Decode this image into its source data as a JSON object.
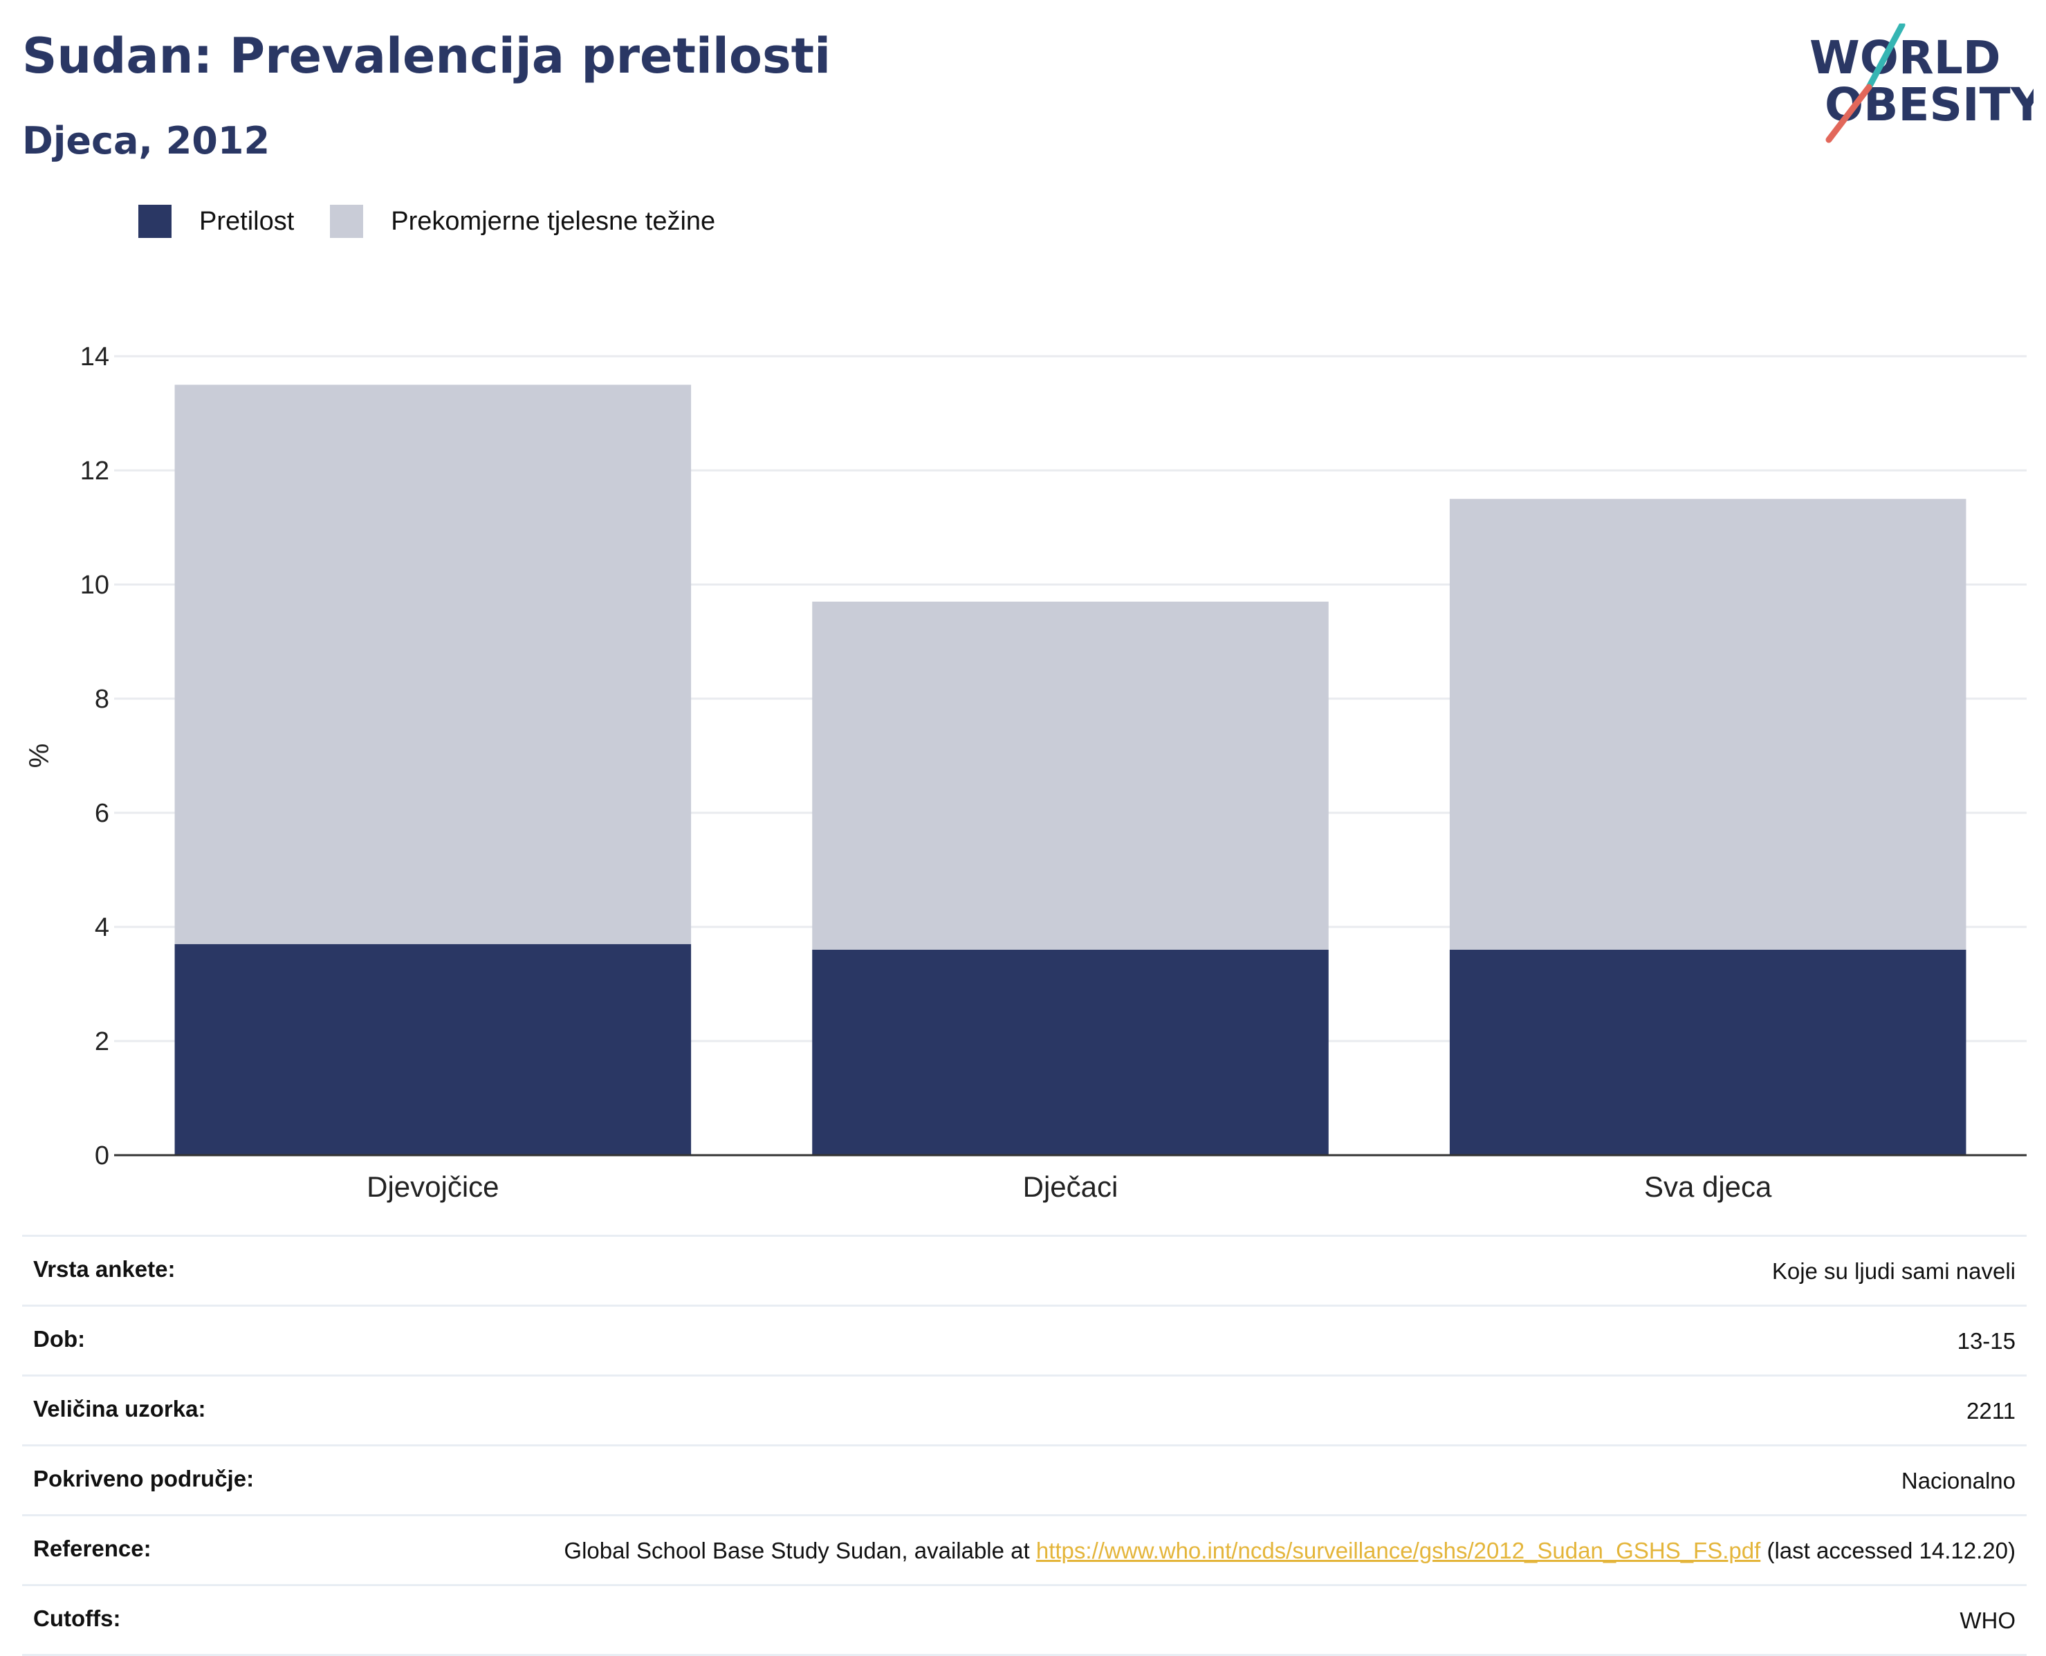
{
  "header": {
    "title": "Sudan: Prevalencija pretilosti",
    "subtitle": "Djeca, 2012",
    "logo_text_top": "WORLD",
    "logo_text_bottom": "OBESITY"
  },
  "colors": {
    "obesity": "#2a3764",
    "overweight": "#c9ccd7",
    "title": "#2a3764",
    "logo_teal": "#35b5b3",
    "logo_red": "#e2675a",
    "link": "#e4b53a"
  },
  "legend": {
    "items": [
      {
        "label": "Pretilost",
        "color": "#2a3764"
      },
      {
        "label": "Prekomjerne tjelesne težine",
        "color": "#c9ccd7"
      }
    ],
    "placement": "top-left"
  },
  "chart_data": {
    "type": "bar",
    "stacked": true,
    "categories": [
      "Djevojčice",
      "Dječaci",
      "Sva djeca"
    ],
    "series": [
      {
        "name": "Pretilost",
        "values": [
          3.7,
          3.6,
          3.6
        ]
      },
      {
        "name": "Prekomjerne tjelesne težine",
        "values": [
          9.8,
          6.1,
          7.9
        ]
      }
    ],
    "ylabel": "%",
    "xlabel": "",
    "ylim": [
      0,
      14
    ],
    "yticks": [
      0,
      2,
      4,
      6,
      8,
      10,
      12,
      14
    ],
    "grid": true
  },
  "info": {
    "rows": [
      {
        "key": "Vrsta ankete:",
        "value": "Koje su ljudi sami naveli"
      },
      {
        "key": "Dob:",
        "value": "13-15"
      },
      {
        "key": "Veličina uzorka:",
        "value": "2211"
      },
      {
        "key": "Pokriveno područje:",
        "value": "Nacionalno"
      },
      {
        "key": "Reference:",
        "value_pre": "Global School Base Study Sudan, available at ",
        "value_link": "https://www.who.int/ncds/surveillance/gshs/2012_Sudan_GSHS_FS.pdf",
        "value_post": " (last accessed 14.12.20)"
      },
      {
        "key": "Cutoffs:",
        "value": "WHO"
      }
    ]
  }
}
